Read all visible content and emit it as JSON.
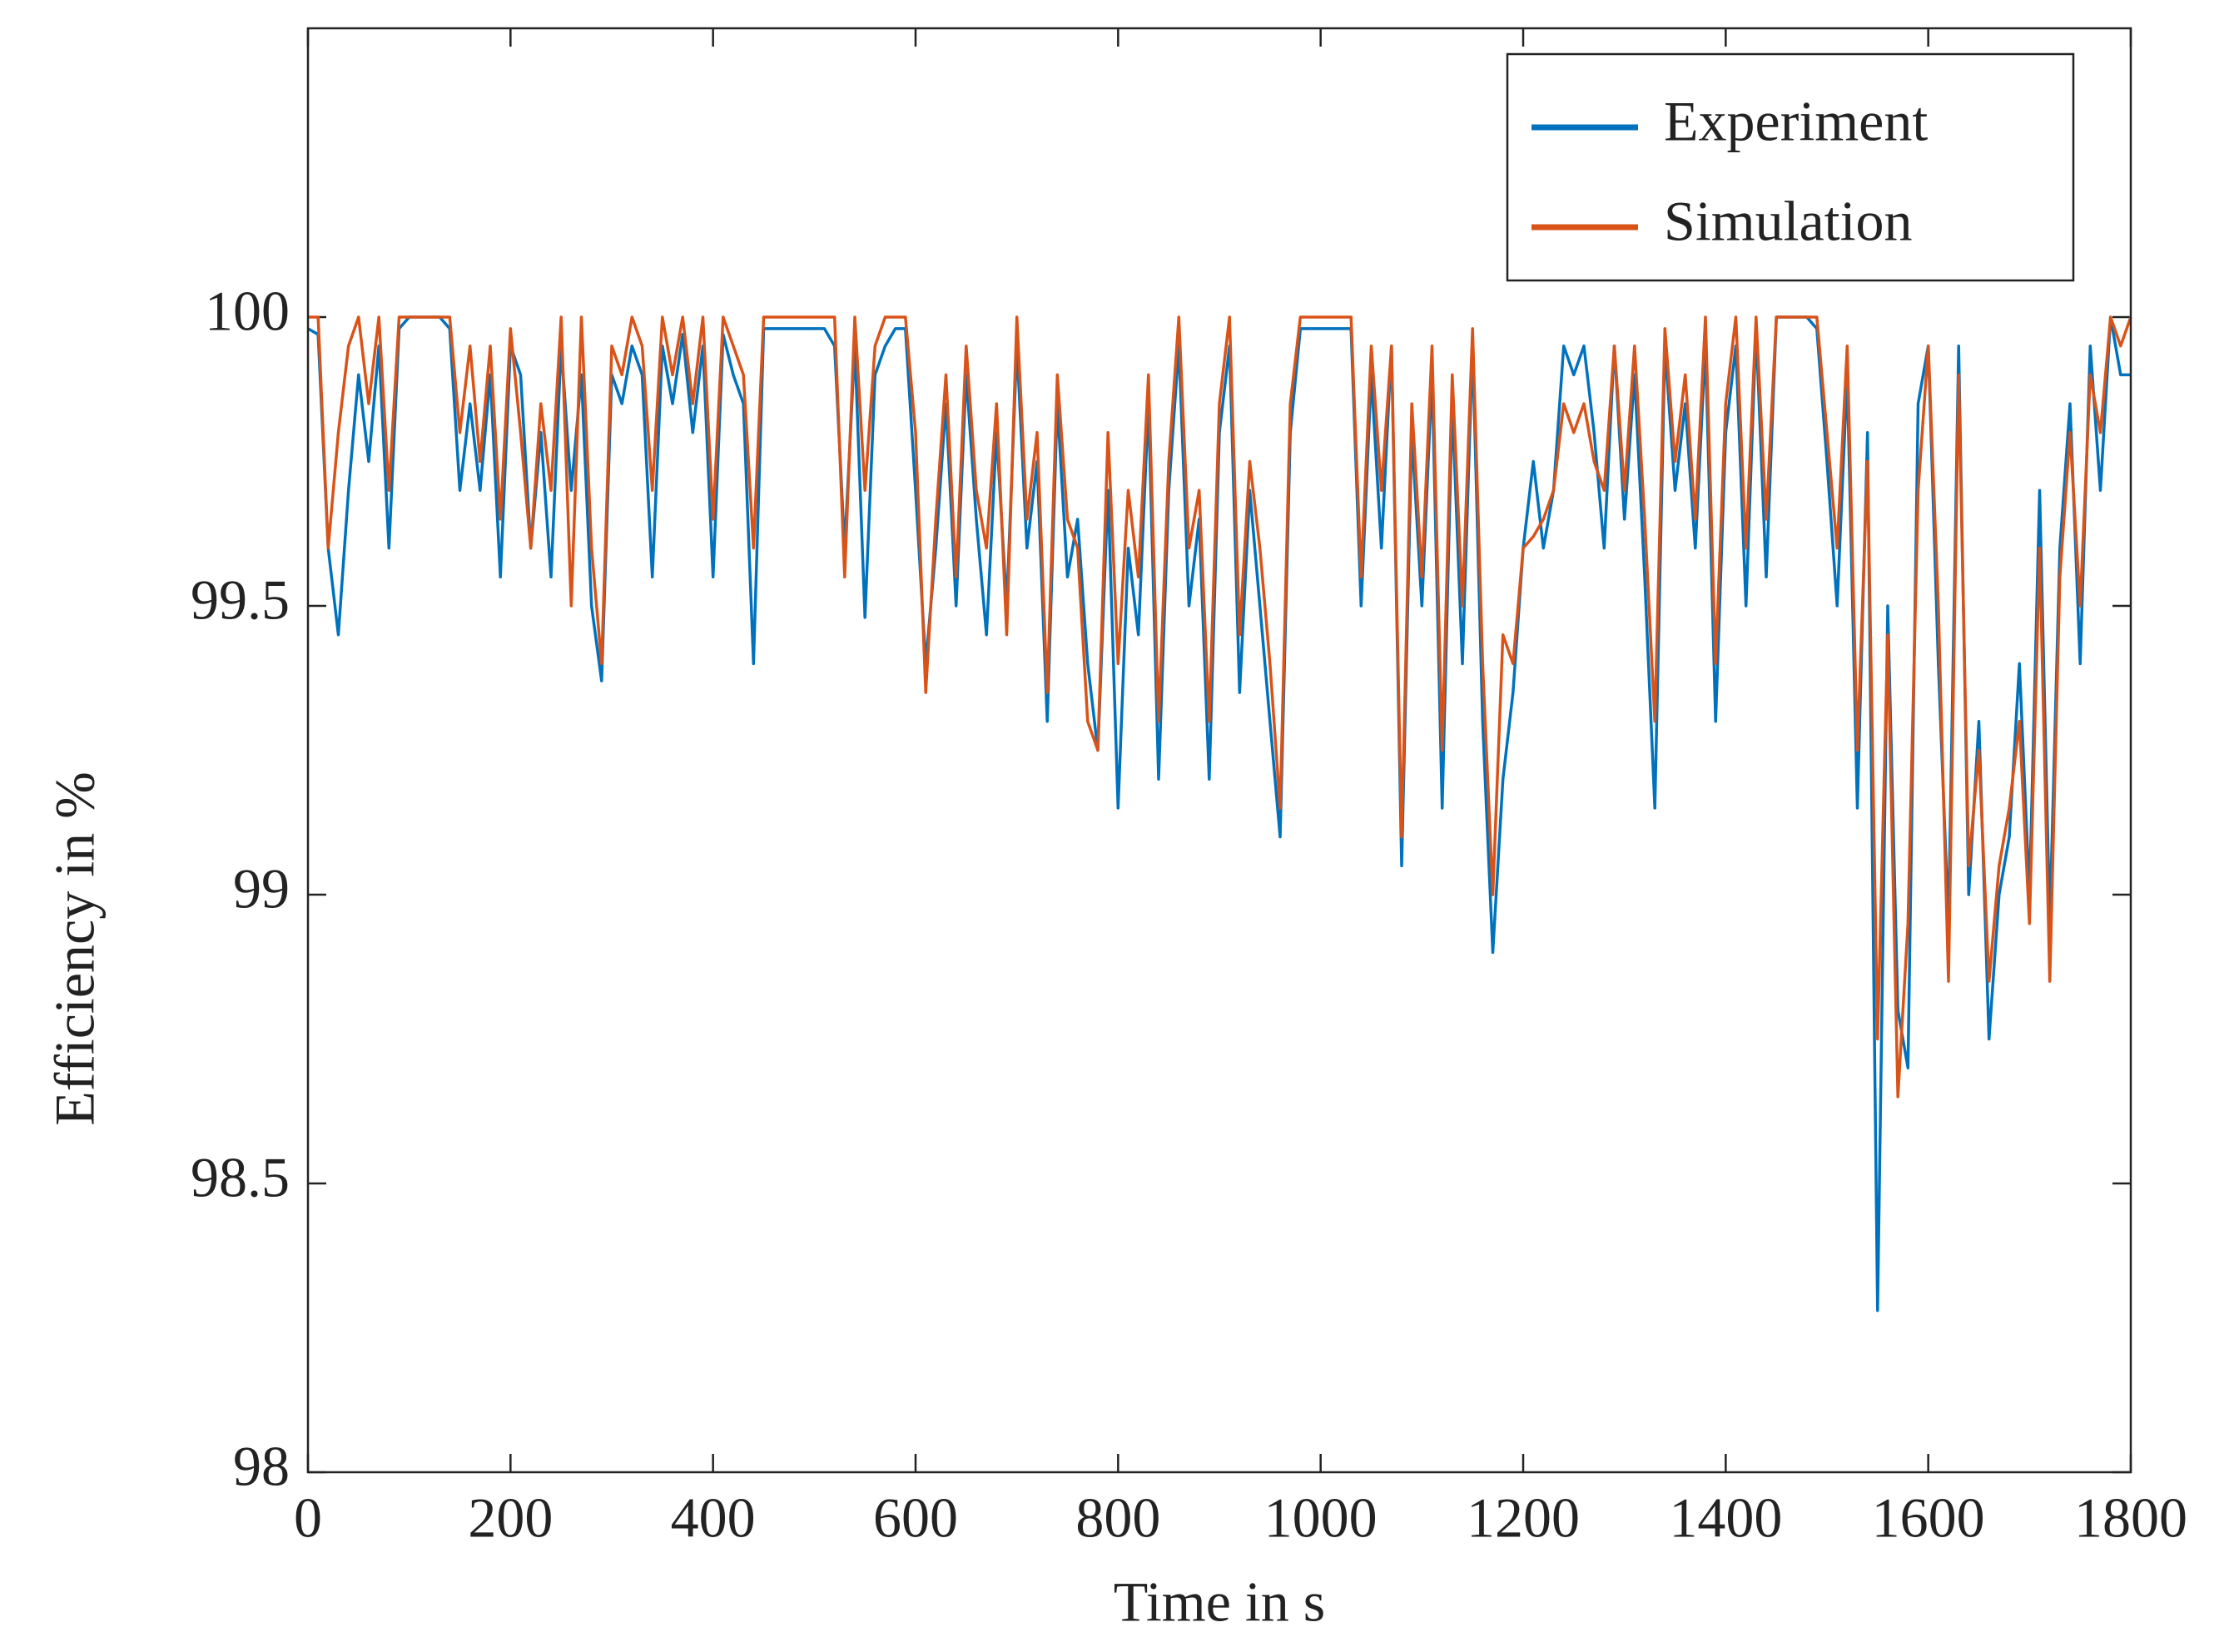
{
  "chart_data": {
    "type": "line",
    "xlabel": "Time in s",
    "ylabel": "Efficiency in %",
    "x": [
      0,
      10,
      20,
      30,
      40,
      50,
      60,
      70,
      80,
      90,
      100,
      110,
      120,
      130,
      140,
      150,
      160,
      170,
      180,
      190,
      200,
      210,
      220,
      230,
      240,
      250,
      260,
      270,
      280,
      290,
      300,
      310,
      320,
      330,
      340,
      350,
      360,
      370,
      380,
      390,
      400,
      410,
      420,
      430,
      440,
      450,
      460,
      470,
      480,
      490,
      500,
      510,
      520,
      530,
      540,
      550,
      560,
      570,
      580,
      590,
      600,
      610,
      620,
      630,
      640,
      650,
      660,
      670,
      680,
      690,
      700,
      710,
      720,
      730,
      740,
      750,
      760,
      770,
      780,
      790,
      800,
      810,
      820,
      830,
      840,
      850,
      860,
      870,
      880,
      890,
      900,
      910,
      920,
      930,
      940,
      950,
      960,
      970,
      980,
      990,
      1000,
      1010,
      1020,
      1030,
      1040,
      1050,
      1060,
      1070,
      1080,
      1090,
      1100,
      1110,
      1120,
      1130,
      1140,
      1150,
      1160,
      1170,
      1180,
      1190,
      1200,
      1210,
      1220,
      1230,
      1240,
      1250,
      1260,
      1270,
      1280,
      1290,
      1300,
      1310,
      1320,
      1330,
      1340,
      1350,
      1360,
      1370,
      1380,
      1390,
      1400,
      1410,
      1420,
      1430,
      1440,
      1450,
      1460,
      1470,
      1480,
      1490,
      1500,
      1510,
      1520,
      1530,
      1540,
      1550,
      1560,
      1570,
      1580,
      1590,
      1600,
      1610,
      1620,
      1630,
      1640,
      1650,
      1660,
      1670,
      1680,
      1690,
      1700,
      1710,
      1720,
      1730,
      1740,
      1750,
      1760,
      1770,
      1780,
      1790,
      1800
    ],
    "series": [
      {
        "name": "Experiment",
        "color": "#0072bd",
        "values": [
          99.98,
          99.97,
          99.6,
          99.45,
          99.7,
          99.9,
          99.75,
          99.95,
          99.6,
          99.98,
          100,
          100,
          100,
          100,
          99.98,
          99.7,
          99.85,
          99.7,
          99.9,
          99.55,
          99.95,
          99.9,
          99.6,
          99.8,
          99.55,
          99.95,
          99.7,
          99.9,
          99.5,
          99.37,
          99.9,
          99.85,
          99.95,
          99.9,
          99.55,
          99.95,
          99.85,
          99.97,
          99.8,
          99.95,
          99.55,
          99.97,
          99.9,
          99.85,
          99.4,
          99.98,
          99.98,
          99.98,
          99.98,
          99.98,
          99.98,
          99.98,
          99.95,
          99.6,
          99.95,
          99.48,
          99.9,
          99.95,
          99.98,
          99.98,
          99.7,
          99.4,
          99.6,
          99.85,
          99.5,
          99.9,
          99.65,
          99.45,
          99.8,
          99.5,
          99.95,
          99.6,
          99.75,
          99.3,
          99.85,
          99.55,
          99.65,
          99.4,
          99.25,
          99.7,
          99.15,
          99.6,
          99.45,
          99.85,
          99.2,
          99.7,
          99.95,
          99.5,
          99.65,
          99.2,
          99.8,
          99.95,
          99.35,
          99.7,
          99.5,
          99.3,
          99.1,
          99.8,
          99.98,
          99.98,
          99.98,
          99.98,
          99.98,
          99.98,
          99.5,
          99.9,
          99.6,
          99.95,
          99.05,
          99.8,
          99.5,
          99.9,
          99.15,
          99.85,
          99.4,
          99.95,
          99.3,
          98.9,
          99.2,
          99.35,
          99.6,
          99.75,
          99.6,
          99.7,
          99.95,
          99.9,
          99.95,
          99.8,
          99.6,
          99.95,
          99.65,
          99.9,
          99.55,
          99.15,
          99.95,
          99.7,
          99.85,
          99.6,
          99.95,
          99.3,
          99.8,
          99.95,
          99.5,
          99.98,
          99.55,
          100,
          100,
          100,
          100,
          99.98,
          99.75,
          99.5,
          99.9,
          99.15,
          99.8,
          98.28,
          99.5,
          98.8,
          98.7,
          99.85,
          99.95,
          99.4,
          98.95,
          99.95,
          99.0,
          99.3,
          98.75,
          99.0,
          99.1,
          99.4,
          99.0,
          99.7,
          98.95,
          99.6,
          99.85,
          99.4,
          99.95,
          99.7,
          100,
          99.9,
          99.9
        ]
      },
      {
        "name": "Simulation",
        "color": "#d95319",
        "values": [
          100,
          100,
          99.6,
          99.8,
          99.95,
          100,
          99.85,
          100,
          99.7,
          100,
          100,
          100,
          100,
          100,
          100,
          99.8,
          99.95,
          99.75,
          99.95,
          99.65,
          99.98,
          99.8,
          99.6,
          99.85,
          99.7,
          100,
          99.5,
          100,
          99.6,
          99.4,
          99.95,
          99.9,
          100,
          99.95,
          99.7,
          100,
          99.9,
          100,
          99.85,
          100,
          99.65,
          100,
          99.95,
          99.9,
          99.6,
          100,
          100,
          100,
          100,
          100,
          100,
          100,
          100,
          99.55,
          100,
          99.7,
          99.95,
          100,
          100,
          100,
          99.8,
          99.35,
          99.65,
          99.9,
          99.55,
          99.95,
          99.7,
          99.6,
          99.85,
          99.45,
          100,
          99.65,
          99.8,
          99.35,
          99.9,
          99.65,
          99.6,
          99.3,
          99.25,
          99.8,
          99.4,
          99.7,
          99.55,
          99.9,
          99.3,
          99.75,
          100,
          99.6,
          99.7,
          99.3,
          99.85,
          100,
          99.45,
          99.75,
          99.6,
          99.4,
          99.15,
          99.85,
          100,
          100,
          100,
          100,
          100,
          100,
          99.55,
          99.95,
          99.7,
          99.95,
          99.1,
          99.85,
          99.55,
          99.95,
          99.25,
          99.9,
          99.5,
          99.98,
          99.4,
          99.0,
          99.45,
          99.4,
          99.6,
          99.62,
          99.65,
          99.7,
          99.85,
          99.8,
          99.85,
          99.75,
          99.7,
          99.95,
          99.7,
          99.95,
          99.65,
          99.3,
          99.98,
          99.75,
          99.9,
          99.65,
          100,
          99.4,
          99.85,
          100,
          99.6,
          100,
          99.65,
          100,
          100,
          100,
          100,
          100,
          99.8,
          99.6,
          99.95,
          99.25,
          99.75,
          98.75,
          99.45,
          98.65,
          98.95,
          99.7,
          99.95,
          99.5,
          98.85,
          99.9,
          99.05,
          99.25,
          98.85,
          99.05,
          99.15,
          99.3,
          98.95,
          99.6,
          98.85,
          99.55,
          99.8,
          99.5,
          99.9,
          99.8,
          100,
          99.95,
          100
        ]
      }
    ],
    "xlim": [
      0,
      1800
    ],
    "xticks": [
      0,
      200,
      400,
      600,
      800,
      1000,
      1200,
      1400,
      1600,
      1800
    ],
    "ylim": [
      98,
      100.5
    ],
    "yticks": [
      98,
      98.5,
      99,
      99.5,
      100
    ],
    "legend": "upper right",
    "grid": false
  }
}
